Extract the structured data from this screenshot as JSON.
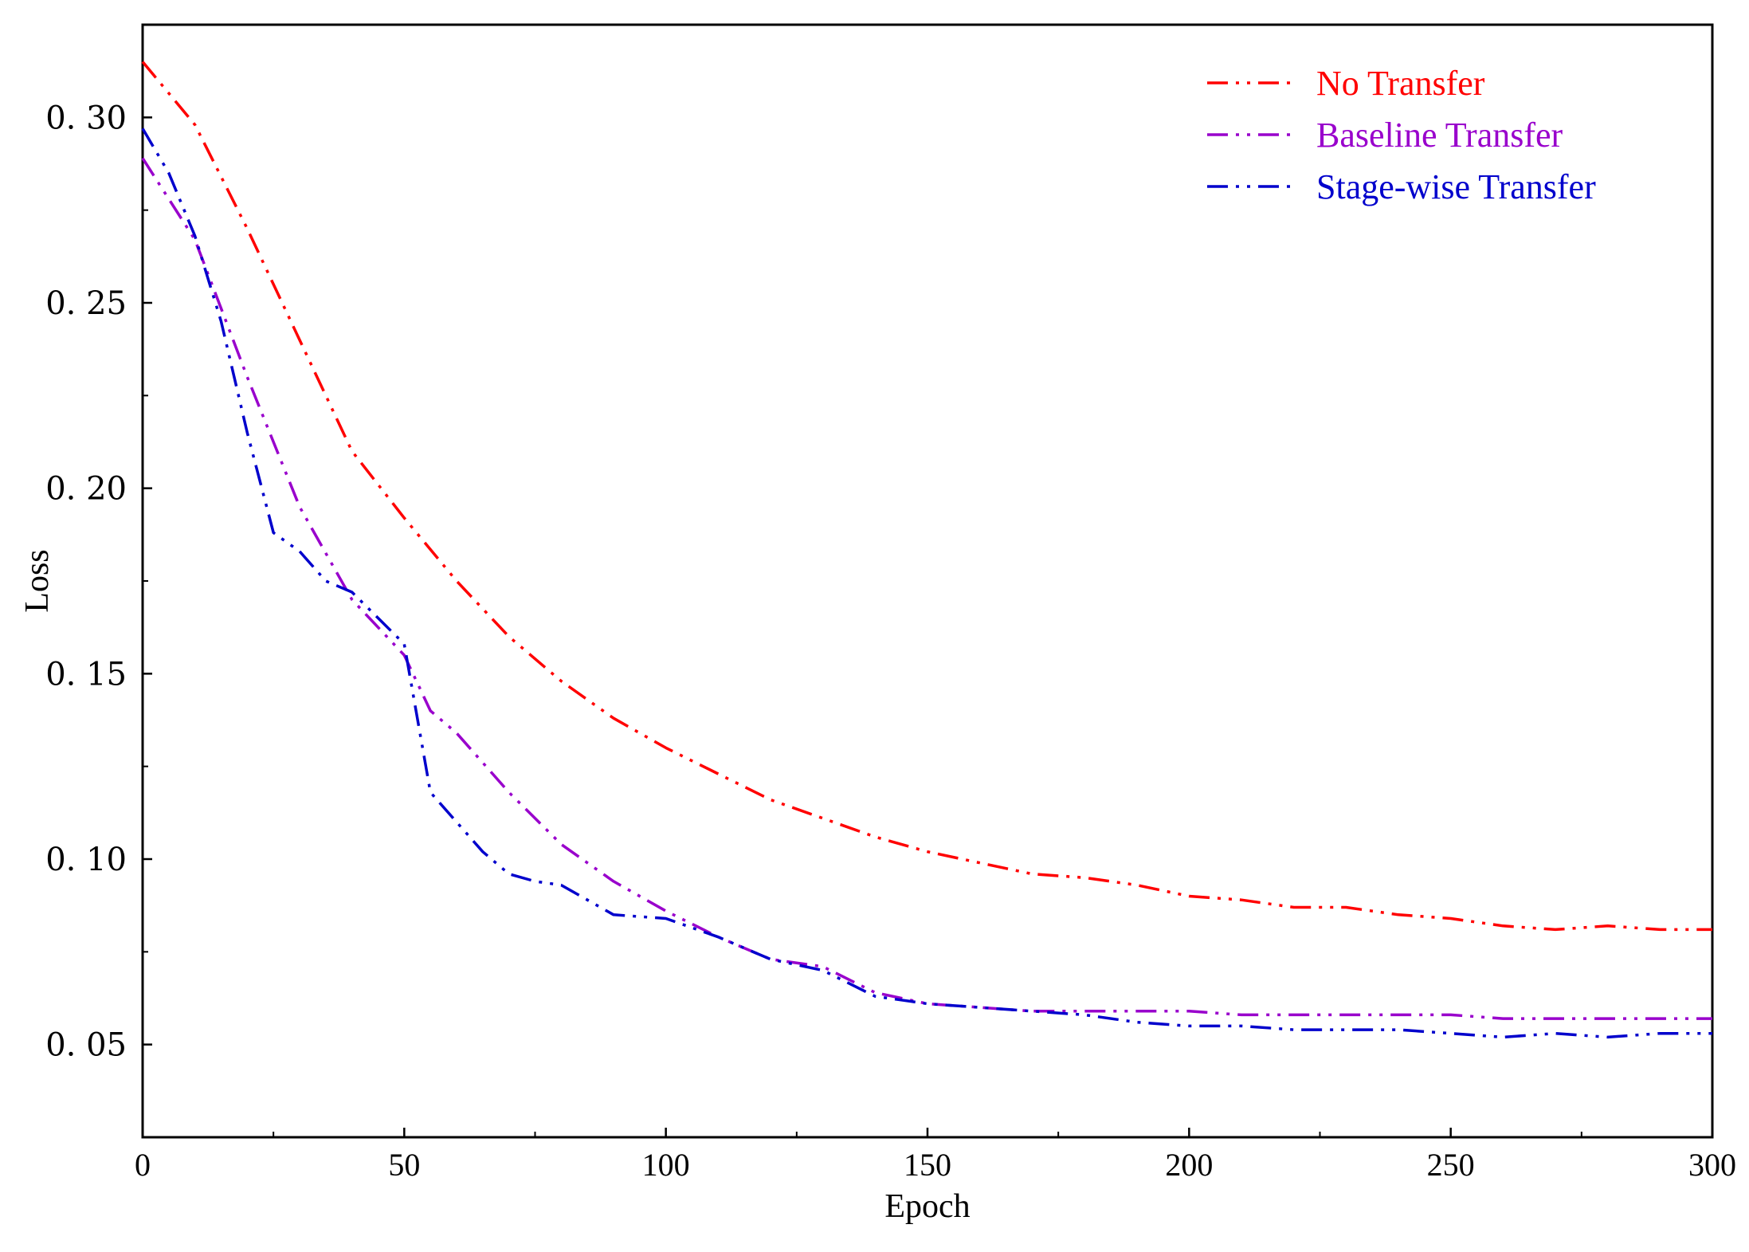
{
  "chart_data": {
    "type": "line",
    "title": "",
    "xlabel": "Epoch",
    "ylabel": "Loss",
    "xlim": [
      0,
      300
    ],
    "ylim": [
      0.025,
      0.325
    ],
    "x_ticks": [
      0,
      50,
      100,
      150,
      200,
      250,
      300
    ],
    "x_tick_labels": [
      "0",
      "50",
      "100",
      "150",
      "200",
      "250",
      "300"
    ],
    "y_ticks": [
      0.05,
      0.1,
      0.15,
      0.2,
      0.25,
      0.3
    ],
    "y_tick_labels": [
      "0. 05",
      "0. 10",
      "0. 15",
      "0. 20",
      "0. 25",
      "0. 30"
    ],
    "grid": false,
    "legend_position": "top-right",
    "series": [
      {
        "name": "No Transfer",
        "color": "#ff0000",
        "x": [
          0,
          10,
          20,
          30,
          40,
          50,
          60,
          70,
          80,
          90,
          100,
          110,
          120,
          130,
          140,
          150,
          160,
          170,
          180,
          190,
          200,
          210,
          220,
          230,
          240,
          250,
          260,
          270,
          280,
          290,
          300
        ],
        "y": [
          0.315,
          0.298,
          0.27,
          0.24,
          0.21,
          0.192,
          0.175,
          0.16,
          0.148,
          0.138,
          0.13,
          0.123,
          0.116,
          0.111,
          0.106,
          0.102,
          0.099,
          0.096,
          0.095,
          0.093,
          0.09,
          0.089,
          0.087,
          0.087,
          0.085,
          0.084,
          0.082,
          0.081,
          0.082,
          0.081,
          0.081
        ]
      },
      {
        "name": "Baseline Transfer",
        "color": "#9900cc",
        "x": [
          0,
          10,
          20,
          30,
          40,
          50,
          55,
          60,
          70,
          80,
          90,
          100,
          110,
          120,
          130,
          140,
          150,
          160,
          170,
          180,
          190,
          200,
          210,
          220,
          230,
          240,
          250,
          260,
          270,
          280,
          290,
          300
        ],
        "y": [
          0.289,
          0.267,
          0.23,
          0.195,
          0.17,
          0.155,
          0.14,
          0.134,
          0.118,
          0.104,
          0.094,
          0.086,
          0.079,
          0.073,
          0.071,
          0.064,
          0.061,
          0.06,
          0.059,
          0.059,
          0.059,
          0.059,
          0.058,
          0.058,
          0.058,
          0.058,
          0.058,
          0.057,
          0.057,
          0.057,
          0.057,
          0.057
        ]
      },
      {
        "name": "Stage-wise Transfer",
        "color": "#0000cc",
        "x": [
          0,
          5,
          10,
          15,
          20,
          25,
          30,
          35,
          40,
          45,
          50,
          55,
          60,
          65,
          70,
          75,
          80,
          90,
          100,
          110,
          120,
          130,
          140,
          150,
          160,
          170,
          180,
          190,
          200,
          210,
          220,
          230,
          240,
          250,
          260,
          270,
          280,
          290,
          300
        ],
        "y": [
          0.297,
          0.285,
          0.268,
          0.245,
          0.215,
          0.188,
          0.183,
          0.175,
          0.172,
          0.165,
          0.158,
          0.118,
          0.11,
          0.102,
          0.096,
          0.094,
          0.093,
          0.085,
          0.084,
          0.079,
          0.073,
          0.07,
          0.063,
          0.061,
          0.06,
          0.059,
          0.058,
          0.056,
          0.055,
          0.055,
          0.054,
          0.054,
          0.054,
          0.053,
          0.052,
          0.053,
          0.052,
          0.053,
          0.053
        ]
      }
    ]
  }
}
